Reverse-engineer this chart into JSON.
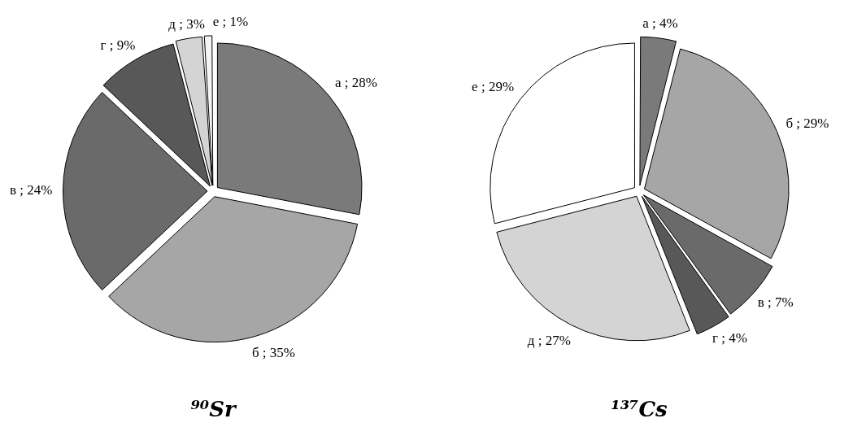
{
  "chart_data": [
    {
      "type": "pie",
      "title": "⁹⁰Sr",
      "categories": [
        "а",
        "б",
        "в",
        "г",
        "д",
        "е"
      ],
      "values": [
        28,
        35,
        24,
        9,
        3,
        1
      ],
      "colors": [
        "#7a7a7a",
        "#a6a6a6",
        "#6a6a6a",
        "#585858",
        "#d4d4d4",
        "#f4f4f4"
      ],
      "value_labels": [
        "; 28%",
        "; 35%",
        "; 24%",
        "; 9%",
        "; 3%",
        "; 1%"
      ],
      "legend": false
    },
    {
      "type": "pie",
      "title": "¹³⁷Cs",
      "categories": [
        "а",
        "б",
        "в",
        "г",
        "д",
        "е"
      ],
      "values": [
        4,
        29,
        7,
        4,
        27,
        29
      ],
      "colors": [
        "#7a7a7a",
        "#a6a6a6",
        "#6a6a6a",
        "#585858",
        "#d4d4d4",
        "#ffffff"
      ],
      "value_labels": [
        "; 4%",
        "; 29%",
        "; 7%",
        "; 4%",
        "; 27%",
        "; 29%"
      ],
      "legend": false
    }
  ]
}
